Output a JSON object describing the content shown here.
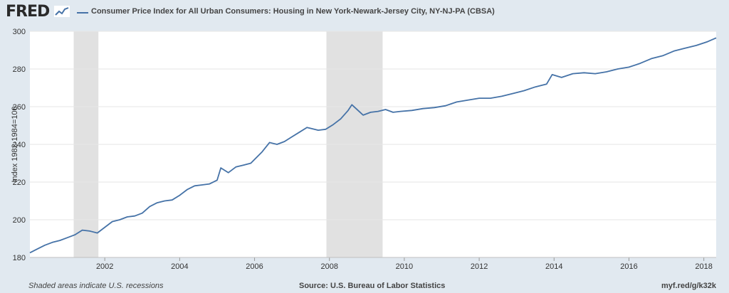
{
  "header": {
    "logo_text": "FRED",
    "series_title": "Consumer Price Index for All Urban Consumers: Housing in New York-Newark-Jersey City, NY-NJ-PA (CBSA)"
  },
  "footer": {
    "recession_note": "Shaded areas indicate U.S. recessions",
    "source": "Source: U.S. Bureau of Labor Statistics",
    "short_url": "myf.red/g/k32k"
  },
  "colors": {
    "line": "#4572a7",
    "recession": "#e1e1e1",
    "background": "#e1e9f0",
    "plot_bg": "#ffffff",
    "grid": "#e6e6e6"
  },
  "chart_data": {
    "type": "line",
    "title": "",
    "xlabel": "",
    "ylabel": "Index 1982-1984=100",
    "xlim": [
      2000.0,
      2018.33
    ],
    "ylim": [
      180,
      300
    ],
    "x_ticks": [
      "2002",
      "2004",
      "2006",
      "2008",
      "2010",
      "2012",
      "2014",
      "2016",
      "2018"
    ],
    "y_ticks": [
      "180",
      "200",
      "220",
      "240",
      "260",
      "280",
      "300"
    ],
    "grid": true,
    "recessions": [
      [
        2001.17,
        2001.83
      ],
      [
        2007.92,
        2009.42
      ]
    ],
    "series": [
      {
        "name": "Consumer Price Index for All Urban Consumers: Housing in New York-Newark-Jersey City, NY-NJ-PA (CBSA)",
        "x": [
          2000.0,
          2000.2,
          2000.4,
          2000.6,
          2000.8,
          2001.0,
          2001.2,
          2001.4,
          2001.6,
          2001.8,
          2002.0,
          2002.2,
          2002.4,
          2002.6,
          2002.8,
          2003.0,
          2003.2,
          2003.4,
          2003.6,
          2003.8,
          2004.0,
          2004.2,
          2004.4,
          2004.6,
          2004.8,
          2005.0,
          2005.1,
          2005.3,
          2005.5,
          2005.7,
          2005.9,
          2006.0,
          2006.2,
          2006.4,
          2006.6,
          2006.8,
          2007.0,
          2007.2,
          2007.4,
          2007.5,
          2007.7,
          2007.9,
          2008.1,
          2008.3,
          2008.5,
          2008.6,
          2008.9,
          2009.1,
          2009.3,
          2009.5,
          2009.7,
          2009.9,
          2010.2,
          2010.5,
          2010.8,
          2011.1,
          2011.4,
          2011.7,
          2012.0,
          2012.3,
          2012.6,
          2012.9,
          2013.2,
          2013.5,
          2013.8,
          2013.95,
          2014.2,
          2014.5,
          2014.8,
          2015.1,
          2015.4,
          2015.7,
          2016.0,
          2016.3,
          2016.6,
          2016.9,
          2017.2,
          2017.5,
          2017.8,
          2018.1,
          2018.33
        ],
        "y": [
          182.5,
          184.5,
          186.5,
          188.0,
          189.0,
          190.5,
          192.0,
          194.5,
          194.0,
          193.0,
          196.0,
          199.0,
          200.0,
          201.5,
          202.0,
          203.5,
          207.0,
          209.0,
          210.0,
          210.5,
          213.0,
          216.0,
          218.0,
          218.5,
          219.0,
          221.0,
          227.5,
          225.0,
          228.0,
          229.0,
          230.0,
          232.0,
          236.0,
          241.0,
          240.0,
          241.5,
          244.0,
          246.5,
          249.0,
          248.5,
          247.5,
          248.0,
          250.5,
          253.5,
          258.0,
          261.0,
          255.5,
          257.0,
          257.5,
          258.5,
          257.0,
          257.5,
          258.0,
          259.0,
          259.5,
          260.5,
          262.5,
          263.5,
          264.5,
          264.5,
          265.5,
          267.0,
          268.5,
          270.5,
          272.0,
          277.0,
          275.5,
          277.5,
          278.0,
          277.5,
          278.5,
          280.0,
          281.0,
          283.0,
          285.5,
          287.0,
          289.5,
          291.0,
          292.5,
          294.5,
          296.5
        ]
      }
    ]
  }
}
